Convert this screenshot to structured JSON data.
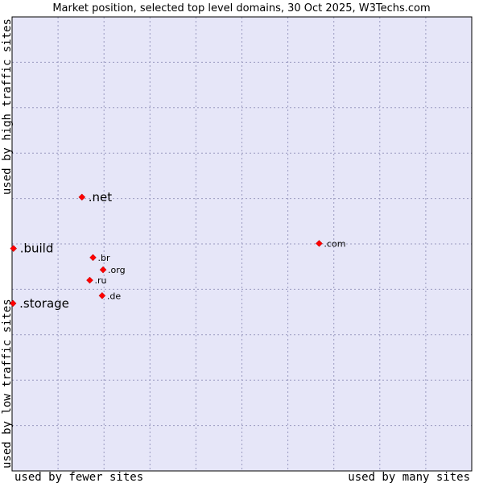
{
  "chart_data": {
    "type": "scatter",
    "title": "Market position, selected top level domains, 30 Oct 2025, W3Techs.com",
    "xlabel_left": "used by fewer sites",
    "xlabel_right": "used by many sites",
    "ylabel_bottom": "used by low traffic sites",
    "ylabel_top": "used by high traffic sites",
    "xlim": [
      0,
      100
    ],
    "ylim": [
      0,
      100
    ],
    "grid": true,
    "points": [
      {
        "label": ".net",
        "x": 15.2,
        "y": 60.3,
        "highlight": true
      },
      {
        "label": ".build",
        "x": 0.3,
        "y": 49.0,
        "highlight": true
      },
      {
        "label": ".storage",
        "x": 0.2,
        "y": 36.9,
        "highlight": true
      },
      {
        "label": ".com",
        "x": 66.8,
        "y": 50.1,
        "highlight": false
      },
      {
        "label": ".br",
        "x": 17.6,
        "y": 47.0,
        "highlight": false
      },
      {
        "label": ".org",
        "x": 19.8,
        "y": 44.3,
        "highlight": false
      },
      {
        "label": ".ru",
        "x": 16.9,
        "y": 42.0,
        "highlight": false
      },
      {
        "label": ".de",
        "x": 19.6,
        "y": 38.6,
        "highlight": false
      }
    ]
  },
  "colors": {
    "plot_background": "#e6e6f8",
    "grid": "#9a9ac0",
    "marker": "#ff0000",
    "axis": "#000000"
  }
}
